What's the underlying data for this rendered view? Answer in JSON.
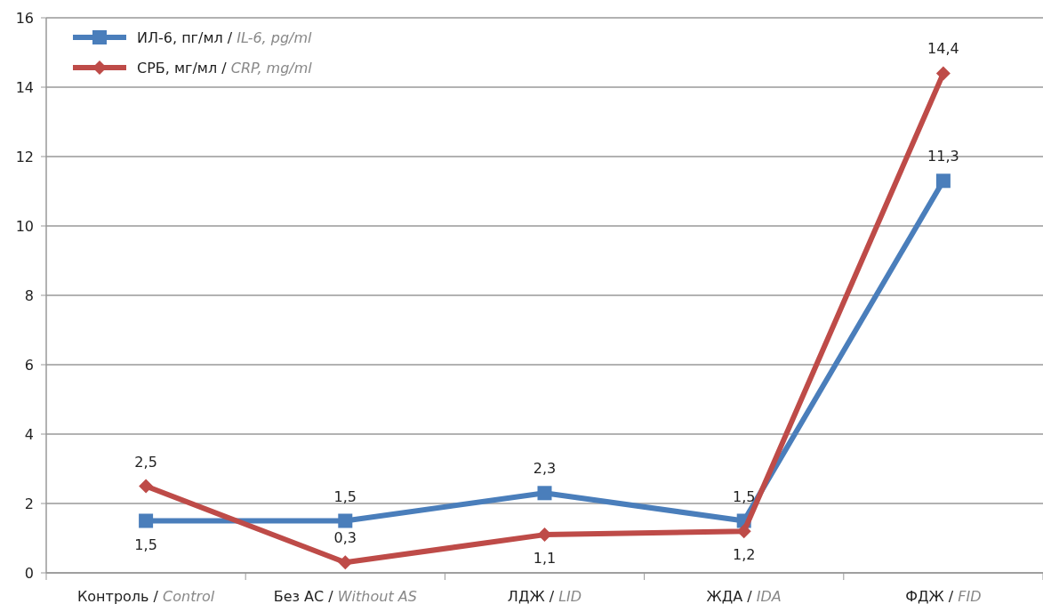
{
  "chart_data": {
    "type": "line",
    "categories": [
      "Контроль / Control",
      "Без АС / Without AS",
      "ЛДЖ / LID",
      "ЖДА / IDA",
      "ФДЖ / FID"
    ],
    "series": [
      {
        "name": "ИЛ-6, пг/мл / IL-6, pg/ml",
        "color": "#4a7ebb",
        "marker": "square",
        "values": [
          1.5,
          1.5,
          2.3,
          1.5,
          11.3
        ],
        "value_labels": [
          "1,5",
          "1,5",
          "2,3",
          "1,5",
          "11,3"
        ]
      },
      {
        "name": "СРБ, мг/мл / CRP, mg/ml",
        "color": "#be4b48",
        "marker": "diamond",
        "values": [
          2.5,
          0.3,
          1.1,
          1.2,
          14.4
        ],
        "value_labels": [
          "2,5",
          "0,3",
          "1,1",
          "1,2",
          "14,4"
        ]
      }
    ],
    "ylim": [
      0,
      16
    ],
    "yticks": [
      0,
      2,
      4,
      6,
      8,
      10,
      12,
      14,
      16
    ],
    "grid": "y",
    "legend": "top left"
  }
}
